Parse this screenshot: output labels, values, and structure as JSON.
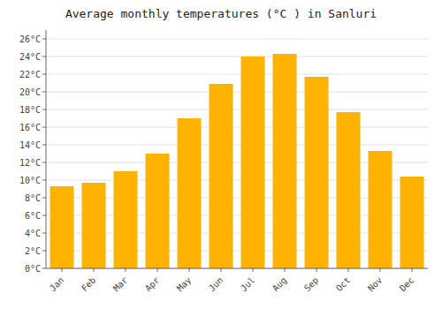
{
  "chart_data": {
    "type": "bar",
    "title": "Average monthly temperatures (°C ) in Sanluri",
    "categories": [
      "Jan",
      "Feb",
      "Mar",
      "Apr",
      "May",
      "Jun",
      "Jul",
      "Aug",
      "Sep",
      "Oct",
      "Nov",
      "Dec"
    ],
    "values": [
      9.3,
      9.7,
      11.0,
      13.0,
      17.0,
      20.9,
      24.0,
      24.3,
      21.7,
      17.7,
      13.3,
      10.4
    ],
    "color": "#FFB300",
    "ylim": [
      0,
      27
    ],
    "yticks": [
      {
        "value": 0,
        "label": "0°C"
      },
      {
        "value": 2,
        "label": "2°C"
      },
      {
        "value": 4,
        "label": "4°C"
      },
      {
        "value": 6,
        "label": "6°C"
      },
      {
        "value": 8,
        "label": "8°C"
      },
      {
        "value": 10,
        "label": "10°C"
      },
      {
        "value": 12,
        "label": "12°C"
      },
      {
        "value": 14,
        "label": "14°C"
      },
      {
        "value": 16,
        "label": "16°C"
      },
      {
        "value": 18,
        "label": "18°C"
      },
      {
        "value": 20,
        "label": "20°C"
      },
      {
        "value": 22,
        "label": "22°C"
      },
      {
        "value": 24,
        "label": "24°C"
      },
      {
        "value": 26,
        "label": "26°C"
      }
    ],
    "grid": true
  }
}
